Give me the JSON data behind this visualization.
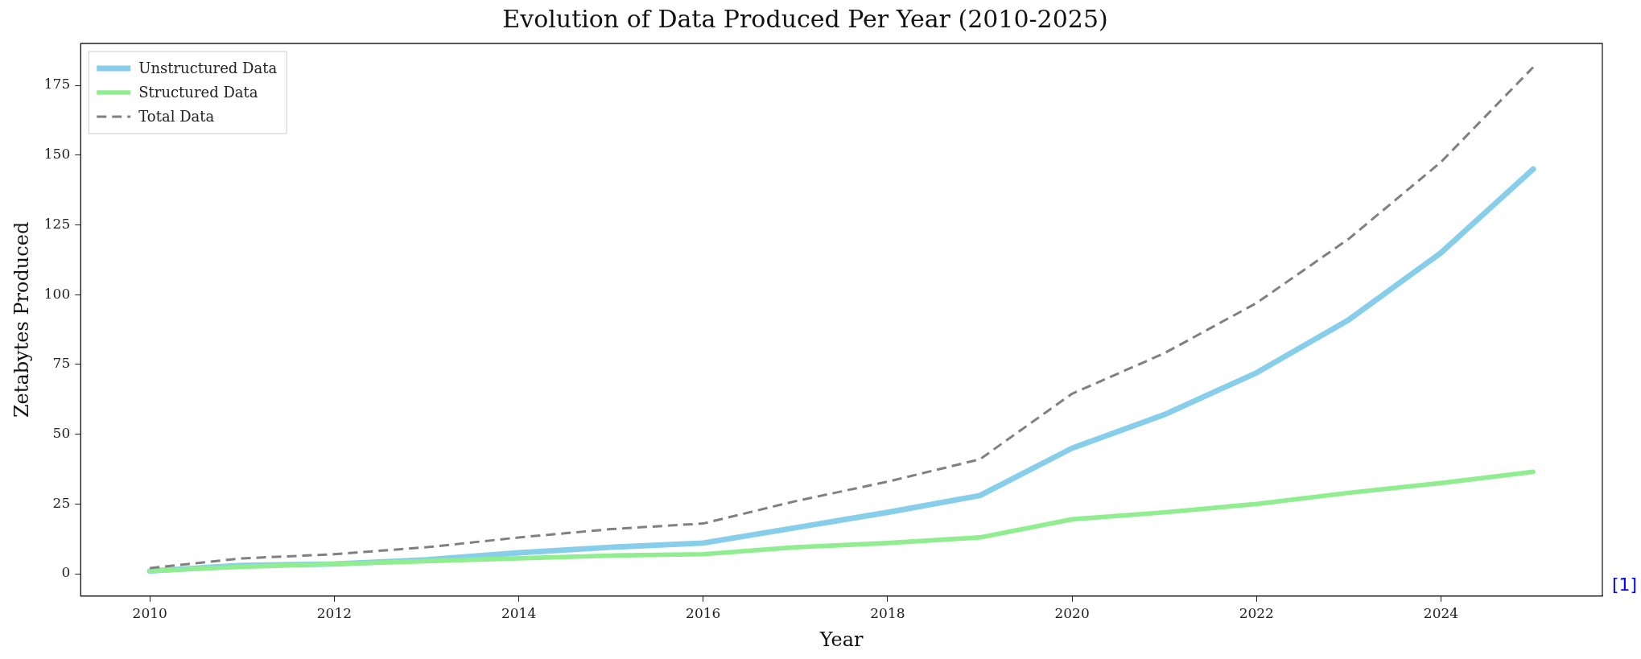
{
  "chart_data": {
    "type": "line",
    "title": "Evolution of Data Produced Per Year (2010-2025)",
    "xlabel": "Year",
    "ylabel": "Zetabytes Produced",
    "x": [
      2010,
      2011,
      2012,
      2013,
      2014,
      2015,
      2016,
      2017,
      2018,
      2019,
      2020,
      2021,
      2022,
      2023,
      2024,
      2025
    ],
    "series": [
      {
        "name": "Unstructured Data",
        "color": "#87ceeb",
        "values": [
          1,
          3,
          3.5,
          5,
          7.5,
          9.5,
          11,
          16.5,
          22,
          28,
          45,
          57,
          72,
          91,
          115,
          145
        ]
      },
      {
        "name": "Structured Data",
        "color": "#90ee90",
        "values": [
          1,
          2.5,
          3.5,
          4.5,
          5.5,
          6.5,
          7,
          9.5,
          11,
          13,
          19.5,
          22,
          25,
          29,
          32.5,
          36.5
        ]
      },
      {
        "name": "Total Data",
        "color": "#808080",
        "line_style": "dashed",
        "values": [
          2,
          5.5,
          7,
          9.5,
          13,
          16,
          18,
          26,
          33,
          41,
          64.5,
          79,
          97,
          120,
          147.5,
          181.5
        ]
      }
    ],
    "xlim": [
      2009.25,
      2025.75
    ],
    "xticks": [
      2010,
      2012,
      2014,
      2016,
      2018,
      2020,
      2022,
      2024
    ],
    "ylim": [
      -8,
      190
    ],
    "yticks": [
      0,
      25,
      50,
      75,
      100,
      125,
      150,
      175
    ],
    "legend": "top left",
    "marker": "none",
    "line_style": "solid",
    "annotations": [
      "[1]"
    ]
  }
}
